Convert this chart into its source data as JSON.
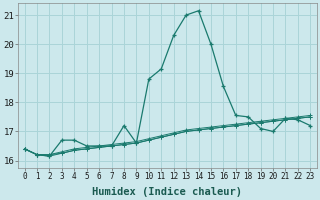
{
  "title": "",
  "xlabel": "Humidex (Indice chaleur)",
  "ylabel": "",
  "bg_color": "#cce8ec",
  "grid_color": "#aad4d8",
  "line_color": "#1a7a6e",
  "xlim": [
    -0.5,
    23.5
  ],
  "ylim": [
    15.75,
    21.4
  ],
  "yticks": [
    16,
    17,
    18,
    19,
    20,
    21
  ],
  "xticks": [
    0,
    1,
    2,
    3,
    4,
    5,
    6,
    7,
    8,
    9,
    10,
    11,
    12,
    13,
    14,
    15,
    16,
    17,
    18,
    19,
    20,
    21,
    22,
    23
  ],
  "series": [
    [
      16.4,
      16.2,
      16.2,
      16.25,
      16.35,
      16.4,
      16.45,
      16.5,
      16.55,
      16.6,
      16.7,
      16.8,
      16.9,
      17.0,
      17.05,
      17.1,
      17.15,
      17.2,
      17.25,
      17.3,
      17.35,
      17.4,
      17.45,
      17.5
    ],
    [
      16.4,
      16.2,
      16.2,
      16.3,
      16.4,
      16.45,
      16.5,
      16.55,
      16.6,
      16.65,
      16.75,
      16.85,
      16.95,
      17.05,
      17.1,
      17.15,
      17.2,
      17.25,
      17.3,
      17.35,
      17.4,
      17.45,
      17.5,
      17.55
    ],
    [
      16.4,
      16.2,
      16.15,
      16.7,
      16.7,
      16.5,
      16.5,
      16.5,
      17.2,
      16.6,
      18.8,
      19.15,
      20.3,
      21.0,
      21.15,
      20.0,
      18.55,
      17.55,
      17.5,
      17.1,
      17.0,
      17.45,
      17.4,
      17.2
    ],
    [
      16.4,
      16.2,
      16.15,
      16.25,
      16.35,
      16.4,
      16.45,
      16.5,
      16.55,
      16.6,
      16.7,
      16.8,
      16.9,
      17.0,
      17.05,
      17.1,
      17.15,
      17.2,
      17.25,
      17.3,
      17.35,
      17.4,
      17.45,
      17.5
    ]
  ]
}
